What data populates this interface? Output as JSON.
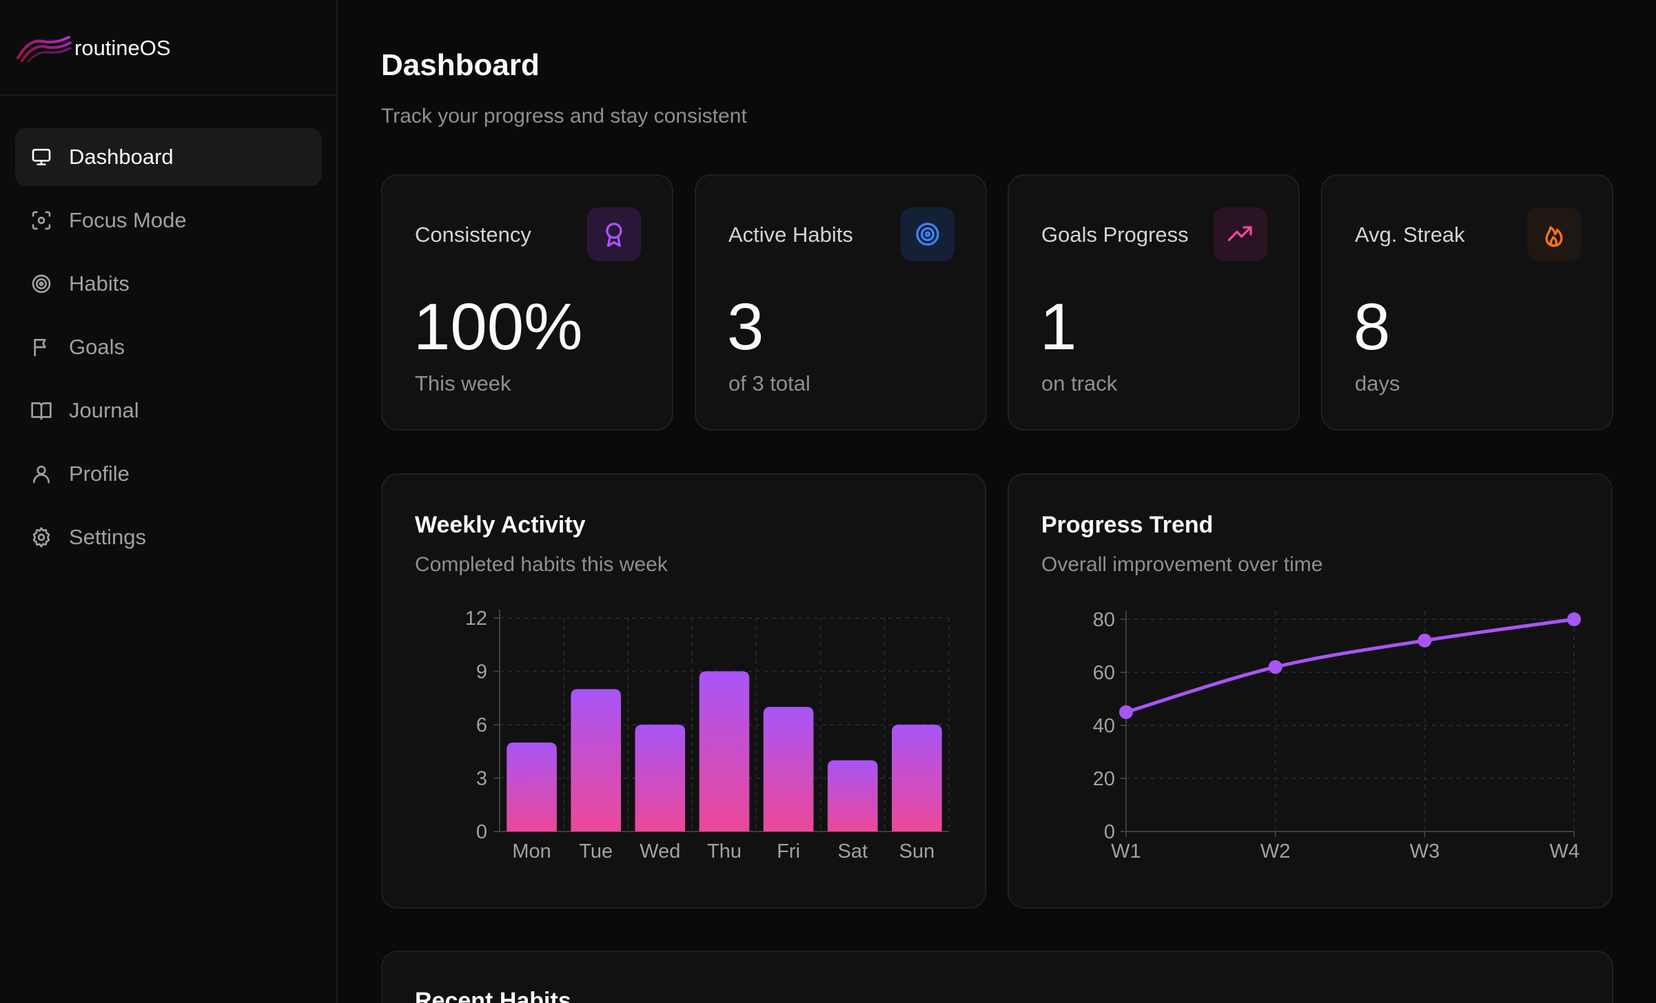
{
  "brand": {
    "name": "routineOS"
  },
  "sidebar": {
    "items": [
      {
        "label": "Dashboard",
        "icon": "monitor-icon",
        "active": true
      },
      {
        "label": "Focus Mode",
        "icon": "focus-icon",
        "active": false
      },
      {
        "label": "Habits",
        "icon": "target-icon",
        "active": false
      },
      {
        "label": "Goals",
        "icon": "flag-icon",
        "active": false
      },
      {
        "label": "Journal",
        "icon": "book-icon",
        "active": false
      },
      {
        "label": "Profile",
        "icon": "user-icon",
        "active": false
      },
      {
        "label": "Settings",
        "icon": "gear-icon",
        "active": false
      }
    ]
  },
  "header": {
    "title": "Dashboard",
    "subtitle": "Track your progress and stay consistent"
  },
  "stats": [
    {
      "label": "Consistency",
      "value": "100%",
      "sub": "This week",
      "icon": "award-icon",
      "color": "#a855f7",
      "bg": "#2a1738"
    },
    {
      "label": "Active Habits",
      "value": "3",
      "sub": "of 3 total",
      "icon": "target-icon",
      "color": "#3b82f6",
      "bg": "#142036"
    },
    {
      "label": "Goals Progress",
      "value": "1",
      "sub": "on track",
      "icon": "trending-up-icon",
      "color": "#ec4899",
      "bg": "#2a1424"
    },
    {
      "label": "Avg. Streak",
      "value": "8",
      "sub": "days",
      "icon": "flame-icon",
      "color": "#f97316",
      "bg": "#1f1712"
    }
  ],
  "weekly": {
    "title": "Weekly Activity",
    "subtitle": "Completed habits this week"
  },
  "trend": {
    "title": "Progress Trend",
    "subtitle": "Overall improvement over time"
  },
  "recent": {
    "title": "Recent Habits"
  },
  "chart_data": [
    {
      "type": "bar",
      "categories": [
        "Mon",
        "Tue",
        "Wed",
        "Thu",
        "Fri",
        "Sat",
        "Sun"
      ],
      "values": [
        5,
        8,
        6,
        9,
        7,
        4,
        6
      ],
      "ylim": [
        0,
        12
      ],
      "yticks": [
        0,
        3,
        6,
        9,
        12
      ],
      "grid": true,
      "colors": {
        "top": "#a855f7",
        "bottom": "#ec4899"
      }
    },
    {
      "type": "line",
      "x": [
        "W1",
        "W2",
        "W3",
        "W4"
      ],
      "values": [
        45,
        62,
        72,
        80
      ],
      "ylim": [
        0,
        80
      ],
      "yticks": [
        0,
        20,
        40,
        60,
        80
      ],
      "grid": true,
      "color": "#a855f7"
    }
  ]
}
